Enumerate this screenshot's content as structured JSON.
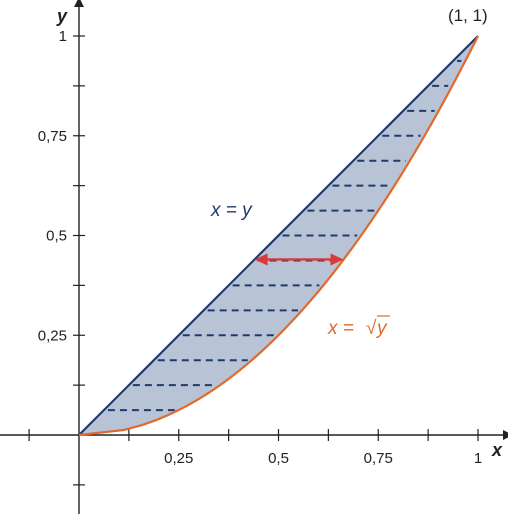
{
  "chart_data": {
    "type": "area",
    "xlabel": "x",
    "ylabel": "y",
    "xlim": [
      -0.25,
      1.05
    ],
    "ylim": [
      -0.25,
      1.05
    ],
    "x_ticks": [
      {
        "value": 0.25,
        "label": "0,25"
      },
      {
        "value": 0.5,
        "label": "0,5"
      },
      {
        "value": 0.75,
        "label": "0,75"
      },
      {
        "value": 1,
        "label": "1"
      }
    ],
    "y_ticks": [
      {
        "value": 0.25,
        "label": "0,25"
      },
      {
        "value": 0.5,
        "label": "0,5"
      },
      {
        "value": 0.75,
        "label": "0,75"
      },
      {
        "value": 1,
        "label": "1"
      }
    ],
    "minor_tick_step": 0.125,
    "series": [
      {
        "name": "x = y",
        "color": "#1f3a6b",
        "points": [
          [
            0,
            0
          ],
          [
            1,
            1
          ]
        ]
      },
      {
        "name": "x = √y",
        "color": "#e06a2b",
        "points": [
          [
            0,
            0
          ],
          [
            0.25,
            0.0625
          ],
          [
            0.5,
            0.25
          ],
          [
            0.75,
            0.5625
          ],
          [
            1,
            1
          ]
        ]
      }
    ],
    "shaded_region": {
      "between": [
        "x = y",
        "x = √y"
      ],
      "y_range": [
        0,
        1
      ],
      "fill": "#b8c4d6",
      "hatch": "horizontal dashed lines"
    },
    "arrow": {
      "y": 0.44,
      "x_from": 0.44,
      "x_to": 0.663,
      "color": "#d63a3a",
      "direction": "both"
    },
    "annotations": [
      {
        "text": "(1, 1)",
        "x": 1,
        "y": 1
      },
      {
        "text": "x = y"
      },
      {
        "text": "x =",
        "radical": "√",
        "radicand": "y"
      }
    ],
    "grid": false,
    "legend": "none"
  }
}
